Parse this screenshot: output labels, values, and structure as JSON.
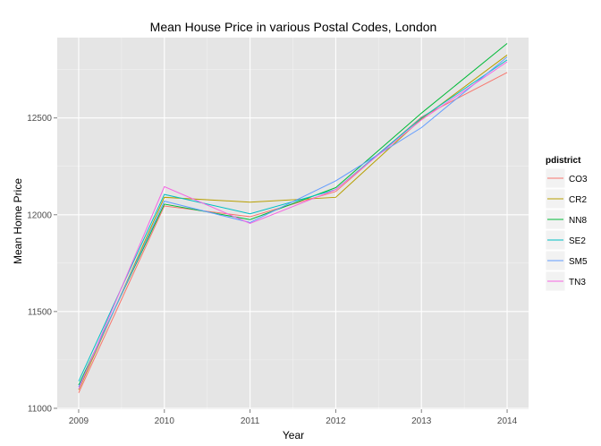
{
  "chart_data": {
    "type": "line",
    "title": "Mean House Price in various Postal Codes, London",
    "xlabel": "Year",
    "ylabel": "Mean Home Price",
    "x": [
      2009,
      2010,
      2011,
      2012,
      2013,
      2014
    ],
    "xlim": [
      2008.75,
      2014.25
    ],
    "ylim": [
      10995,
      12915
    ],
    "x_ticks": [
      2009,
      2010,
      2011,
      2012,
      2013,
      2014
    ],
    "y_ticks": [
      11000,
      11500,
      12000,
      12500
    ],
    "grid": true,
    "legend": {
      "title": "pdistrict",
      "placement": "right"
    },
    "series": [
      {
        "name": "CO3",
        "color": "#f8766d",
        "values": [
          11080,
          12045,
          11990,
          12120,
          12505,
          12735
        ]
      },
      {
        "name": "CR2",
        "color": "#b79f00",
        "values": [
          11095,
          12090,
          12065,
          12090,
          12495,
          12825
        ]
      },
      {
        "name": "NN8",
        "color": "#00ba38",
        "values": [
          11120,
          12055,
          11975,
          12140,
          12525,
          12885
        ]
      },
      {
        "name": "SE2",
        "color": "#00bfc4",
        "values": [
          11140,
          12105,
          12005,
          12130,
          12500,
          12800
        ]
      },
      {
        "name": "SM5",
        "color": "#619cff",
        "values": [
          11110,
          12070,
          11960,
          12175,
          12450,
          12815
        ]
      },
      {
        "name": "TN3",
        "color": "#f564e3",
        "values": [
          11100,
          12145,
          11955,
          12130,
          12490,
          12790
        ]
      }
    ]
  }
}
